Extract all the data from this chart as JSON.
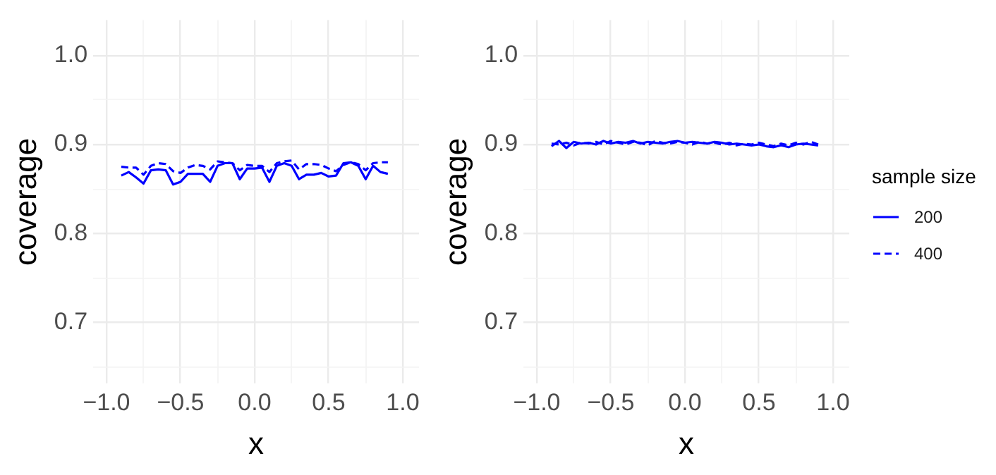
{
  "chart_data": [
    {
      "type": "line",
      "xlabel": "x",
      "ylabel": "coverage",
      "xlim": [
        -1.09,
        1.11
      ],
      "ylim": [
        0.631,
        1.04
      ],
      "xticks": [
        {
          "value": -1,
          "label": "−1.0"
        },
        {
          "value": -0.75,
          "label": null
        },
        {
          "value": -0.5,
          "label": "−0.5"
        },
        {
          "value": -0.25,
          "label": null
        },
        {
          "value": 0,
          "label": "0.0"
        },
        {
          "value": 0.25,
          "label": null
        },
        {
          "value": 0.5,
          "label": "0.5"
        },
        {
          "value": 0.75,
          "label": null
        },
        {
          "value": 1,
          "label": "1.0"
        }
      ],
      "yticks": [
        {
          "value": 0.65,
          "label": null
        },
        0.7,
        {
          "value": 0.75,
          "label": null
        },
        0.8,
        {
          "value": 0.85,
          "label": null
        },
        0.9,
        {
          "value": 0.95,
          "label": null
        },
        {
          "value": 1,
          "label": "1.0"
        }
      ],
      "grid": true,
      "legend": false,
      "marker": "none",
      "x": [
        -0.9,
        -0.85,
        -0.8,
        -0.75,
        -0.7,
        -0.65,
        -0.6,
        -0.55,
        -0.5,
        -0.45,
        -0.4,
        -0.35,
        -0.3,
        -0.25,
        -0.2,
        -0.15,
        -0.1,
        -0.05,
        0,
        0.05,
        0.1,
        0.15,
        0.2,
        0.25,
        0.3,
        0.35,
        0.4,
        0.45,
        0.5,
        0.55,
        0.6,
        0.65,
        0.7,
        0.75,
        0.8,
        0.85,
        0.9
      ],
      "series": [
        {
          "color": "#0000ff",
          "line_style": "solid",
          "values": [
            0.865,
            0.869,
            0.863,
            0.856,
            0.871,
            0.872,
            0.871,
            0.855,
            0.858,
            0.867,
            0.867,
            0.867,
            0.858,
            0.876,
            0.879,
            0.879,
            0.861,
            0.873,
            0.873,
            0.874,
            0.858,
            0.876,
            0.879,
            0.876,
            0.861,
            0.866,
            0.866,
            0.868,
            0.864,
            0.865,
            0.879,
            0.88,
            0.876,
            0.861,
            0.876,
            0.869,
            0.867
          ]
        },
        {
          "color": "#0000ff",
          "line_style": "dashed",
          "values": [
            0.875,
            0.874,
            0.874,
            0.866,
            0.876,
            0.879,
            0.878,
            0.87,
            0.868,
            0.874,
            0.877,
            0.876,
            0.872,
            0.881,
            0.88,
            0.879,
            0.871,
            0.877,
            0.876,
            0.876,
            0.869,
            0.879,
            0.881,
            0.882,
            0.872,
            0.878,
            0.878,
            0.877,
            0.873,
            0.87,
            0.877,
            0.88,
            0.878,
            0.871,
            0.879,
            0.88,
            0.88
          ]
        }
      ]
    },
    {
      "type": "line",
      "xlabel": "x",
      "ylabel": "coverage",
      "legend_title": "sample size",
      "xlim": [
        -1.09,
        1.11
      ],
      "ylim": [
        0.631,
        1.04
      ],
      "xticks": [
        {
          "value": -1,
          "label": "−1.0"
        },
        {
          "value": -0.75,
          "label": null
        },
        {
          "value": -0.5,
          "label": "−0.5"
        },
        {
          "value": -0.25,
          "label": null
        },
        {
          "value": 0,
          "label": "0.0"
        },
        {
          "value": 0.25,
          "label": null
        },
        {
          "value": 0.5,
          "label": "0.5"
        },
        {
          "value": 0.75,
          "label": null
        },
        {
          "value": 1,
          "label": "1.0"
        }
      ],
      "yticks": [
        {
          "value": 0.65,
          "label": null
        },
        0.7,
        {
          "value": 0.75,
          "label": null
        },
        0.8,
        {
          "value": 0.85,
          "label": null
        },
        0.9,
        {
          "value": 0.95,
          "label": null
        },
        {
          "value": 1,
          "label": "1.0"
        }
      ],
      "grid": true,
      "legend": "right",
      "marker": "none",
      "x": [
        -0.9,
        -0.85,
        -0.8,
        -0.75,
        -0.7,
        -0.65,
        -0.6,
        -0.55,
        -0.5,
        -0.45,
        -0.4,
        -0.35,
        -0.3,
        -0.25,
        -0.2,
        -0.15,
        -0.1,
        -0.05,
        0,
        0.05,
        0.1,
        0.15,
        0.2,
        0.25,
        0.3,
        0.35,
        0.4,
        0.45,
        0.5,
        0.55,
        0.6,
        0.65,
        0.7,
        0.75,
        0.8,
        0.85,
        0.9
      ],
      "series": [
        {
          "name": "200",
          "color": "#0000ff",
          "line_style": "solid",
          "values": [
            0.898,
            0.904,
            0.896,
            0.903,
            0.901,
            0.902,
            0.9,
            0.904,
            0.901,
            0.903,
            0.902,
            0.904,
            0.901,
            0.903,
            0.902,
            0.901,
            0.903,
            0.904,
            0.902,
            0.903,
            0.902,
            0.901,
            0.903,
            0.902,
            0.9,
            0.901,
            0.9,
            0.899,
            0.9,
            0.898,
            0.897,
            0.899,
            0.897,
            0.9,
            0.901,
            0.9,
            0.899
          ]
        },
        {
          "name": "400",
          "color": "#0000ff",
          "line_style": "dashed",
          "values": [
            0.901,
            0.9,
            0.902,
            0.899,
            0.902,
            0.901,
            0.903,
            0.9,
            0.904,
            0.902,
            0.9,
            0.903,
            0.902,
            0.899,
            0.904,
            0.902,
            0.901,
            0.903,
            0.902,
            0.9,
            0.903,
            0.901,
            0.902,
            0.9,
            0.902,
            0.899,
            0.901,
            0.9,
            0.902,
            0.9,
            0.898,
            0.901,
            0.899,
            0.902,
            0.9,
            0.903,
            0.9
          ]
        }
      ]
    }
  ]
}
